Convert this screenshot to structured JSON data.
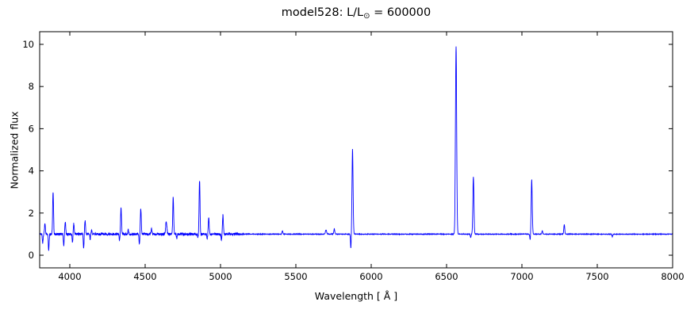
{
  "figure": {
    "title_prefix": "model528: L/L",
    "title_sub": "⊙",
    "title_suffix": " = 600000",
    "xlabel": "Wavelength [ Å ]",
    "ylabel": "Normalized flux"
  },
  "chart_data": {
    "type": "line",
    "title": "model528: L/L⊙ = 600000",
    "xlabel": "Wavelength [ Å ]",
    "ylabel": "Normalized flux",
    "xlim": [
      3800,
      8000
    ],
    "ylim": [
      -0.6,
      10.6
    ],
    "x_ticks": [
      4000,
      4500,
      5000,
      5500,
      6000,
      6500,
      7000,
      7500,
      8000
    ],
    "y_ticks": [
      0,
      2,
      4,
      6,
      8,
      10
    ],
    "legend": "none",
    "grid": false,
    "line_color": "#0000ff",
    "axis_color": "#000000",
    "baseline_flux": 1.0,
    "emission_lines": [
      {
        "wavelength": 3835,
        "peak_flux": 1.5,
        "sigma": 3
      },
      {
        "wavelength": 3889,
        "peak_flux": 3.0,
        "sigma": 3
      },
      {
        "wavelength": 3970,
        "peak_flux": 1.55,
        "sigma": 3
      },
      {
        "wavelength": 4026,
        "peak_flux": 1.5,
        "sigma": 3
      },
      {
        "wavelength": 4101,
        "peak_flux": 1.65,
        "sigma": 3
      },
      {
        "wavelength": 4144,
        "peak_flux": 1.2,
        "sigma": 3
      },
      {
        "wavelength": 4340,
        "peak_flux": 2.25,
        "sigma": 3
      },
      {
        "wavelength": 4388,
        "peak_flux": 1.2,
        "sigma": 3
      },
      {
        "wavelength": 4471,
        "peak_flux": 2.2,
        "sigma": 3
      },
      {
        "wavelength": 4542,
        "peak_flux": 1.25,
        "sigma": 3
      },
      {
        "wavelength": 4640,
        "peak_flux": 1.6,
        "sigma": 4
      },
      {
        "wavelength": 4686,
        "peak_flux": 2.8,
        "sigma": 3
      },
      {
        "wavelength": 4861,
        "peak_flux": 3.55,
        "sigma": 3
      },
      {
        "wavelength": 4922,
        "peak_flux": 1.75,
        "sigma": 3
      },
      {
        "wavelength": 5016,
        "peak_flux": 1.9,
        "sigma": 3
      },
      {
        "wavelength": 5411,
        "peak_flux": 1.15,
        "sigma": 3
      },
      {
        "wavelength": 5700,
        "peak_flux": 1.2,
        "sigma": 4
      },
      {
        "wavelength": 5755,
        "peak_flux": 1.25,
        "sigma": 3
      },
      {
        "wavelength": 5876,
        "peak_flux": 5.05,
        "sigma": 3.5
      },
      {
        "wavelength": 6563,
        "peak_flux": 9.9,
        "sigma": 4
      },
      {
        "wavelength": 6678,
        "peak_flux": 3.7,
        "sigma": 3.5
      },
      {
        "wavelength": 7065,
        "peak_flux": 3.6,
        "sigma": 3.5
      },
      {
        "wavelength": 7135,
        "peak_flux": 1.15,
        "sigma": 3
      },
      {
        "wavelength": 7281,
        "peak_flux": 1.45,
        "sigma": 3
      }
    ],
    "absorption_dips": [
      {
        "wavelength": 3820,
        "min_flux": 0.55,
        "sigma": 2.5
      },
      {
        "wavelength": 3860,
        "min_flux": 0.2,
        "sigma": 2.5
      },
      {
        "wavelength": 3960,
        "min_flux": 0.45,
        "sigma": 2.5
      },
      {
        "wavelength": 4018,
        "min_flux": 0.6,
        "sigma": 2.5
      },
      {
        "wavelength": 4092,
        "min_flux": 0.35,
        "sigma": 2.5
      },
      {
        "wavelength": 4135,
        "min_flux": 0.75,
        "sigma": 2.5
      },
      {
        "wavelength": 4330,
        "min_flux": 0.7,
        "sigma": 2.5
      },
      {
        "wavelength": 4462,
        "min_flux": 0.5,
        "sigma": 2.5
      },
      {
        "wavelength": 4710,
        "min_flux": 0.8,
        "sigma": 2.5
      },
      {
        "wavelength": 4850,
        "min_flux": 0.85,
        "sigma": 2.5
      },
      {
        "wavelength": 4912,
        "min_flux": 0.8,
        "sigma": 2.5
      },
      {
        "wavelength": 5006,
        "min_flux": 0.7,
        "sigma": 2.5
      },
      {
        "wavelength": 5865,
        "min_flux": 0.3,
        "sigma": 2.5
      },
      {
        "wavelength": 6660,
        "min_flux": 0.85,
        "sigma": 2.5
      },
      {
        "wavelength": 7055,
        "min_flux": 0.7,
        "sigma": 2.5
      },
      {
        "wavelength": 7600,
        "min_flux": 0.88,
        "sigma": 3
      }
    ],
    "noise": {
      "noisy_region_end": 5150,
      "noisy_amplitude": 0.055,
      "quiet_amplitude": 0.015
    }
  }
}
